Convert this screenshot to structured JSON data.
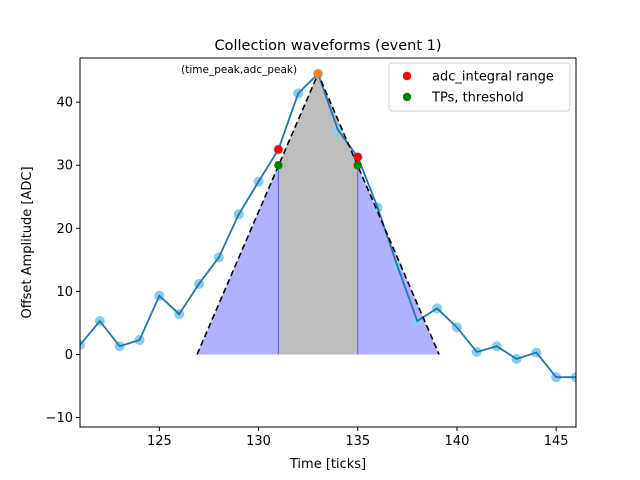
{
  "chart_data": {
    "type": "line",
    "title": "Collection waveforms (event 1)",
    "xlabel": "Time [ticks]",
    "ylabel": "Offset Amplitude [ADC]",
    "xlim": [
      121,
      146
    ],
    "ylim": [
      -11.5,
      47
    ],
    "xticks": [
      125,
      130,
      135,
      140,
      145
    ],
    "yticks": [
      -10,
      0,
      10,
      20,
      30,
      40
    ],
    "grid": false,
    "legend_position": "top-right",
    "waveform": {
      "x": [
        121,
        122,
        123,
        124,
        125,
        126,
        127,
        128,
        129,
        130,
        131,
        132,
        133,
        134,
        135,
        136,
        137,
        138,
        139,
        140,
        141,
        142,
        143,
        144,
        145,
        146
      ],
      "y": [
        1.5,
        5.3,
        1.3,
        2.3,
        9.3,
        6.4,
        11.2,
        15.4,
        22.2,
        27.4,
        32.5,
        41.4,
        44.5,
        35.6,
        31.3,
        23.3,
        14.0,
        5.3,
        7.3,
        4.3,
        0.4,
        1.3,
        -0.7,
        0.3,
        -3.6,
        -3.6
      ],
      "color": "#1f77b4",
      "marker_color": "#87ceeb"
    },
    "triangle": {
      "x": [
        126.9,
        133,
        139.1
      ],
      "y": [
        0,
        44.5,
        0
      ],
      "color": "#000000"
    },
    "fill_regions": [
      {
        "name": "left-wing",
        "x": [
          126.9,
          131
        ],
        "y_top": [
          0,
          30
        ],
        "color": "#b0b0ff"
      },
      {
        "name": "center",
        "x": [
          131,
          133,
          135
        ],
        "y_top": [
          30,
          44.5,
          30
        ],
        "color": "#bdbdbd"
      },
      {
        "name": "right-wing",
        "x": [
          135,
          139.1
        ],
        "y_top": [
          30,
          0
        ],
        "color": "#b0b0ff"
      }
    ],
    "peak_point": {
      "x": 133,
      "y": 44.5,
      "color": "#ff7f0e"
    },
    "annotation": {
      "text": "(time_peak,adc_peak)",
      "x": 126.1,
      "y": 44.5
    },
    "series": [
      {
        "name": "adc_integral range",
        "color": "#ff0000",
        "points": [
          [
            131,
            32.5
          ],
          [
            135,
            31.3
          ]
        ]
      },
      {
        "name": "TPs, threshold",
        "color": "#008000",
        "points": [
          [
            131,
            30
          ],
          [
            135,
            30
          ]
        ]
      }
    ]
  }
}
